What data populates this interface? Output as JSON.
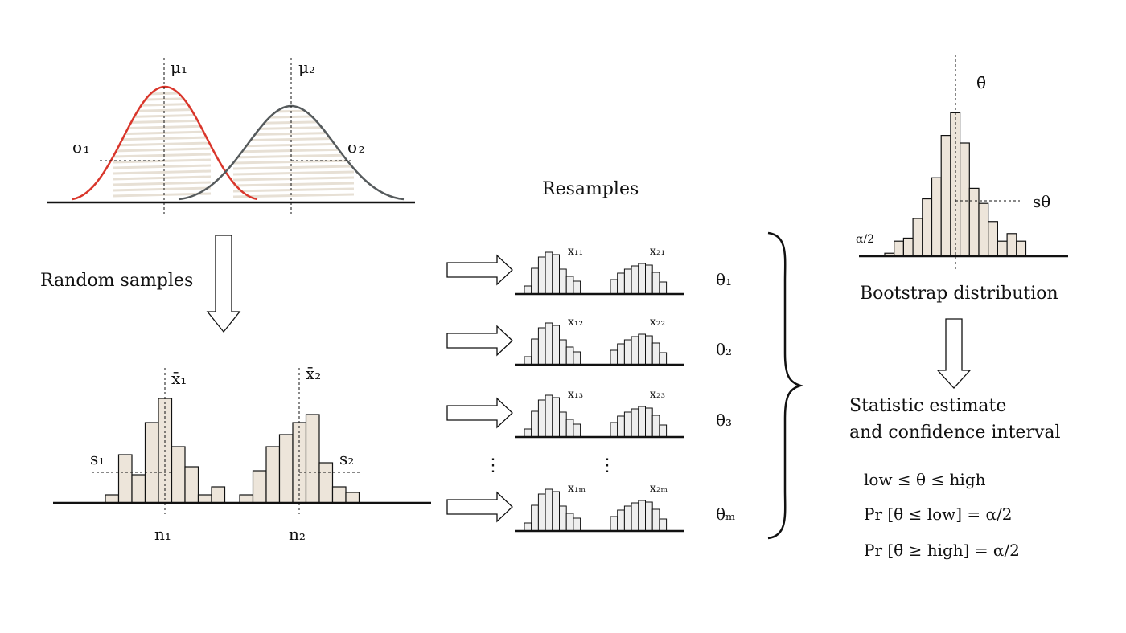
{
  "labels": {
    "mu1": "μ₁",
    "mu2": "μ₂",
    "sigma1": "σ₁",
    "sigma2": "σ₂",
    "random_samples": "Random samples",
    "xbar1": "x̄₁",
    "xbar2": "x̄₂",
    "s1": "s₁",
    "s2": "s₂",
    "n1": "n₁",
    "n2": "n₂",
    "resamples": "Resamples",
    "x11": "x₁₁",
    "x21": "x₂₁",
    "x12": "x₁₂",
    "x22": "x₂₂",
    "x13": "x₁₃",
    "x23": "x₂₃",
    "x1m": "x₁ₘ",
    "x2m": "x₂ₘ",
    "dots": "⋮",
    "theta1": "θ₁",
    "theta2": "θ₂",
    "theta3": "θ₃",
    "thetam": "θₘ",
    "thetabar": "θ̄",
    "s_theta": "sθ",
    "alpha_half": "α/2",
    "bootstrap_distribution": "Bootstrap distribution",
    "estimate_line1": "Statistic estimate",
    "estimate_line2": "and confidence interval",
    "formula1": "low ≤  θ  ≤ high",
    "formula2": "Pr [θ̄ ≤ low] = α/2",
    "formula3": "Pr [θ̄ ≥ high] =  α/2"
  },
  "colors": {
    "curve1": "#d9362b",
    "curve2": "#555a5c",
    "bar_fill": "#ede5da",
    "resample_fill": "#eeeeee",
    "hatch": "#e7e0d5"
  },
  "samples": {
    "group1": [
      1,
      6,
      3.5,
      10,
      13,
      7,
      4.5,
      1,
      2
    ],
    "group2": [
      1,
      4,
      7,
      8.5,
      10,
      11,
      5,
      2,
      1.3
    ]
  },
  "resample_bars": {
    "group1": [
      1,
      3.2,
      4.6,
      5.2,
      4.9,
      3.1,
      2.2,
      1.6
    ],
    "group2": [
      1.8,
      2.6,
      3.1,
      3.5,
      3.8,
      3.6,
      2.7,
      1.5
    ]
  },
  "bootstrap_bars": [
    0.2,
    1,
    1.2,
    2.5,
    3.8,
    5.2,
    8,
    9.5,
    7.5,
    4.5,
    3.5,
    2.3,
    1,
    1.5,
    1
  ]
}
